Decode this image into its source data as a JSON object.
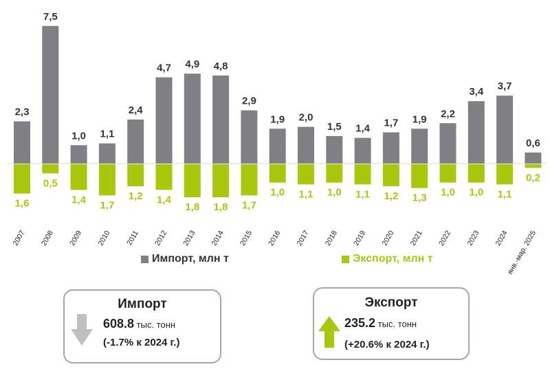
{
  "chart_data": {
    "type": "bar",
    "categories": [
      "2007",
      "2008",
      "2009",
      "2010",
      "2011",
      "2012",
      "2013",
      "2014",
      "2015",
      "2016",
      "2017",
      "2018",
      "2019",
      "2020",
      "2021",
      "2022",
      "2023",
      "2024",
      "янв.-мар. 2025"
    ],
    "series": [
      {
        "name": "Импорт, млн т",
        "color": "#7f7f84",
        "values": [
          2.3,
          7.5,
          1.0,
          1.1,
          2.4,
          4.7,
          4.9,
          4.8,
          2.9,
          1.9,
          2.0,
          1.5,
          1.4,
          1.7,
          1.9,
          2.2,
          3.4,
          3.7,
          0.6
        ]
      },
      {
        "name": "Экспорт, млн т",
        "color": "#a9c70c",
        "values": [
          1.6,
          0.5,
          1.4,
          1.7,
          1.2,
          1.4,
          1.8,
          1.8,
          1.7,
          1.0,
          1.1,
          1.0,
          1.1,
          1.2,
          1.3,
          1.0,
          1.0,
          1.1,
          0.2
        ]
      }
    ],
    "export_plotted_downward": true,
    "legend_position": "bottom",
    "grid": false
  },
  "import_box": {
    "title": "Импорт",
    "value": "608.8",
    "unit": "тыс. тонн",
    "change": "(-1.7% к 2024 г.)",
    "arrow": "arrow-down-icon",
    "arrow_color": "#bfbfbf"
  },
  "export_box": {
    "title": "Экспорт",
    "value": "235.2",
    "unit": "тыс. тонн",
    "change": "(+20.6% к 2024 г.)",
    "arrow": "arrow-up-icon",
    "arrow_color": "#a9c70c"
  }
}
